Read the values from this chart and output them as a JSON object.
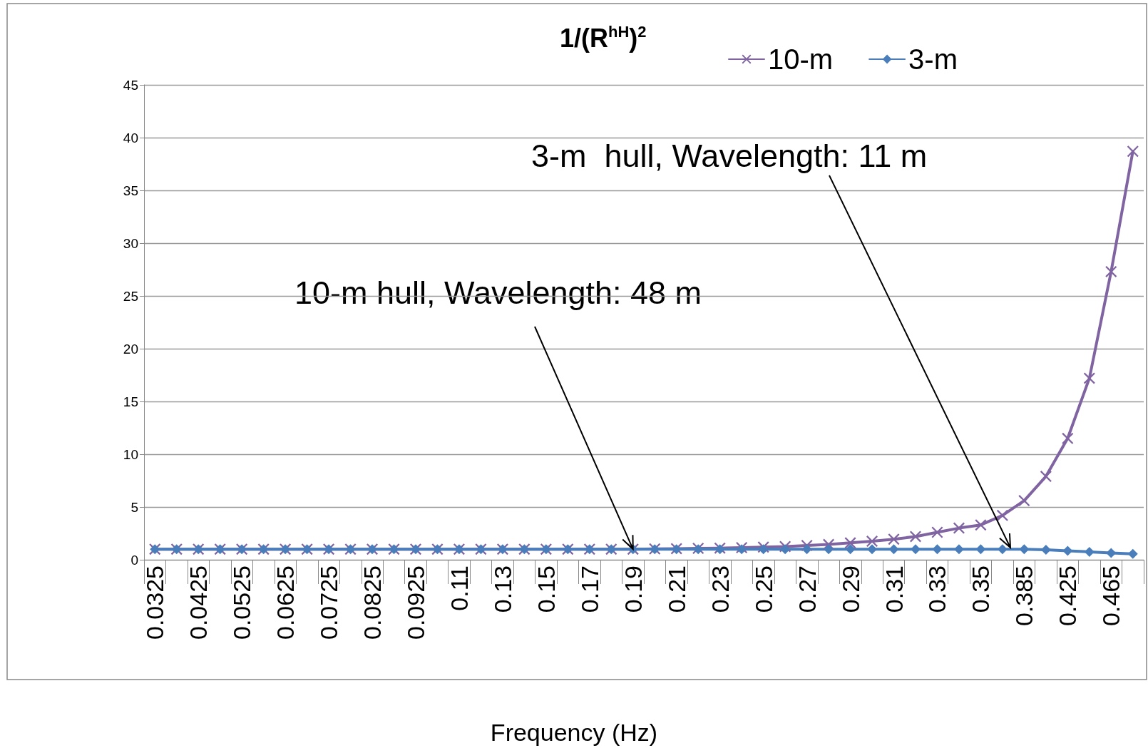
{
  "chart_data": {
    "type": "line",
    "title": "1/(R$^{hH}$)$^{2}$",
    "xlabel": "Frequency (Hz)",
    "categories": [
      "0.0325",
      null,
      "0.0425",
      null,
      "0.0525",
      null,
      "0.0625",
      null,
      "0.0725",
      null,
      "0.0825",
      null,
      "0.0925",
      null,
      "0.11",
      null,
      "0.13",
      null,
      "0.15",
      null,
      "0.17",
      null,
      "0.19",
      null,
      "0.21",
      null,
      "0.23",
      null,
      "0.25",
      null,
      "0.27",
      null,
      "0.29",
      null,
      "0.31",
      null,
      "0.33",
      null,
      "0.35",
      null,
      "0.385",
      null,
      "0.425",
      null,
      "0.465",
      null
    ],
    "series": [
      {
        "name": "10-m",
        "color": "#8064a2",
        "marker": "cross",
        "values": [
          1,
          1,
          1,
          1,
          1,
          1,
          1,
          1,
          1,
          1,
          1,
          1,
          1,
          1,
          1,
          1,
          1,
          1,
          1,
          1,
          1,
          1,
          1,
          1.03,
          1.05,
          1.08,
          1.1,
          1.15,
          1.2,
          1.25,
          1.35,
          1.45,
          1.6,
          1.75,
          1.95,
          2.2,
          2.6,
          3.0,
          3.3,
          4.2,
          5.6,
          7.9,
          11.5,
          17.2,
          27.3,
          38.7
        ]
      },
      {
        "name": "3-m",
        "color": "#4a7ebb",
        "marker": "diamond",
        "values": [
          1,
          1,
          1,
          1,
          1,
          1,
          1,
          1,
          1,
          1,
          1,
          1,
          1,
          1,
          1,
          1,
          1,
          1,
          1,
          1,
          1,
          1,
          1,
          1,
          1,
          1,
          1,
          1,
          1,
          1,
          1,
          1,
          1,
          1,
          1,
          1,
          1,
          1,
          1,
          1,
          1.0,
          0.95,
          0.85,
          0.75,
          0.65,
          0.55
        ]
      }
    ],
    "ylim": [
      0,
      45
    ],
    "yticks": [
      0,
      5,
      10,
      15,
      20,
      25,
      30,
      35,
      40,
      45
    ],
    "grid": "y",
    "legend": "top right",
    "line_style": "solid",
    "annotations": [
      {
        "text": "10-m hull, Wavelength: 48 m",
        "x": "0.19",
        "y": 1
      },
      "3-m  hull, Wavelength: 11 m"
    ]
  }
}
